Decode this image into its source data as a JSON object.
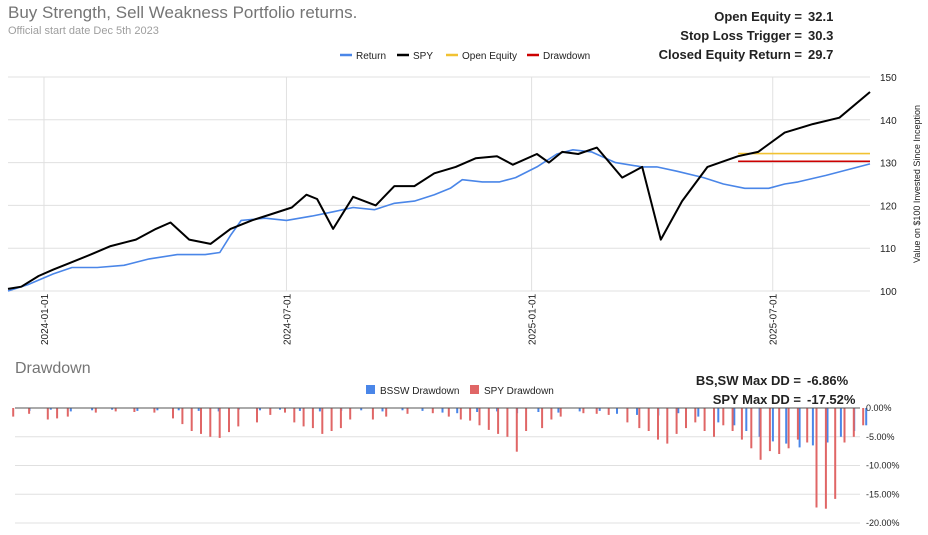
{
  "header": {
    "title": "Buy Strength, Sell Weakness Portfolio returns.",
    "subtitle": "Official start date Dec 5th 2023"
  },
  "stats": [
    {
      "label": "Open Equity =",
      "value": "32.1"
    },
    {
      "label": "Stop Loss Trigger =",
      "value": "30.3"
    },
    {
      "label": "Closed Equity Return =",
      "value": "29.7"
    }
  ],
  "drawdown_panel": {
    "title": "Drawdown",
    "stats": [
      {
        "label": "BS,SW Max DD =",
        "value": "-6.86%"
      },
      {
        "label": "SPY Max DD =",
        "value": "-17.52%"
      }
    ]
  },
  "colors": {
    "return": "#4a86e8",
    "spy": "#000000",
    "open_equity": "#f1c232",
    "drawdown_line": "#cc0000",
    "bssw_dd": "#4a86e8",
    "spy_dd": "#e06666",
    "grid": "#e0e0e0"
  },
  "chart_data": [
    {
      "type": "line",
      "title": "Buy Strength, Sell Weakness Portfolio returns.",
      "ylabel": "Value on $100 Invested Since Inception",
      "ylim": [
        100,
        150
      ],
      "yticks": [
        "100",
        "110",
        "120",
        "130",
        "140",
        "150"
      ],
      "xticks": [
        {
          "label": "2024-01-01",
          "date": "2024-01-01"
        },
        {
          "label": "2024-07-01",
          "date": "2024-07-01"
        },
        {
          "label": "2025-01-01",
          "date": "2025-01-01"
        },
        {
          "label": "2025-07-01",
          "date": "2025-07-01"
        }
      ],
      "x_range": [
        "2023-12-05",
        "2025-09-12"
      ],
      "grid": true,
      "legend": "top",
      "series": [
        {
          "name": "Return",
          "color_key": "return",
          "points": [
            [
              "2023-12-05",
              100.0
            ],
            [
              "2023-12-20",
              101.5
            ],
            [
              "2024-01-08",
              104.0
            ],
            [
              "2024-01-22",
              105.5
            ],
            [
              "2024-02-10",
              105.5
            ],
            [
              "2024-03-01",
              106.0
            ],
            [
              "2024-03-20",
              107.5
            ],
            [
              "2024-04-10",
              108.5
            ],
            [
              "2024-05-01",
              108.5
            ],
            [
              "2024-05-12",
              109.0
            ],
            [
              "2024-05-20",
              113.0
            ],
            [
              "2024-05-28",
              116.5
            ],
            [
              "2024-06-15",
              117.0
            ],
            [
              "2024-07-01",
              116.5
            ],
            [
              "2024-07-20",
              117.5
            ],
            [
              "2024-08-05",
              118.5
            ],
            [
              "2024-08-20",
              119.5
            ],
            [
              "2024-09-05",
              119.0
            ],
            [
              "2024-09-20",
              120.5
            ],
            [
              "2024-10-05",
              121.0
            ],
            [
              "2024-10-20",
              122.5
            ],
            [
              "2024-11-01",
              124.0
            ],
            [
              "2024-11-10",
              126.0
            ],
            [
              "2024-11-25",
              125.5
            ],
            [
              "2024-12-08",
              125.5
            ],
            [
              "2024-12-20",
              126.5
            ],
            [
              "2025-01-05",
              129.0
            ],
            [
              "2025-01-20",
              132.0
            ],
            [
              "2025-02-01",
              133.0
            ],
            [
              "2025-02-15",
              132.5
            ],
            [
              "2025-03-05",
              130.0
            ],
            [
              "2025-03-25",
              129.0
            ],
            [
              "2025-04-05",
              129.0
            ],
            [
              "2025-04-20",
              128.0
            ],
            [
              "2025-05-10",
              126.5
            ],
            [
              "2025-05-25",
              125.0
            ],
            [
              "2025-06-10",
              124.0
            ],
            [
              "2025-06-28",
              124.0
            ],
            [
              "2025-07-10",
              125.0
            ],
            [
              "2025-07-20",
              125.5
            ],
            [
              "2025-08-10",
              127.0
            ],
            [
              "2025-09-12",
              129.7
            ]
          ]
        },
        {
          "name": "SPY",
          "color_key": "spy",
          "points": [
            [
              "2023-12-05",
              100.5
            ],
            [
              "2023-12-15",
              101.0
            ],
            [
              "2023-12-28",
              103.5
            ],
            [
              "2024-01-08",
              105.0
            ],
            [
              "2024-01-20",
              106.5
            ],
            [
              "2024-02-05",
              108.5
            ],
            [
              "2024-02-20",
              110.5
            ],
            [
              "2024-03-10",
              112.0
            ],
            [
              "2024-03-25",
              114.5
            ],
            [
              "2024-04-05",
              116.0
            ],
            [
              "2024-04-19",
              112.0
            ],
            [
              "2024-05-05",
              111.0
            ],
            [
              "2024-05-20",
              114.5
            ],
            [
              "2024-06-05",
              116.5
            ],
            [
              "2024-06-20",
              118.0
            ],
            [
              "2024-07-05",
              119.5
            ],
            [
              "2024-07-16",
              122.5
            ],
            [
              "2024-07-24",
              121.5
            ],
            [
              "2024-08-05",
              114.5
            ],
            [
              "2024-08-20",
              122.0
            ],
            [
              "2024-09-06",
              120.0
            ],
            [
              "2024-09-20",
              124.5
            ],
            [
              "2024-10-05",
              124.5
            ],
            [
              "2024-10-20",
              127.5
            ],
            [
              "2024-11-05",
              129.0
            ],
            [
              "2024-11-20",
              131.0
            ],
            [
              "2024-12-06",
              131.5
            ],
            [
              "2024-12-18",
              129.5
            ],
            [
              "2025-01-05",
              132.0
            ],
            [
              "2025-01-14",
              130.0
            ],
            [
              "2025-01-24",
              132.5
            ],
            [
              "2025-02-05",
              132.0
            ],
            [
              "2025-02-19",
              133.5
            ],
            [
              "2025-03-10",
              126.5
            ],
            [
              "2025-03-25",
              129.0
            ],
            [
              "2025-04-08",
              112.0
            ],
            [
              "2025-04-24",
              121.0
            ],
            [
              "2025-05-13",
              129.0
            ],
            [
              "2025-06-05",
              131.5
            ],
            [
              "2025-06-20",
              132.5
            ],
            [
              "2025-07-10",
              137.0
            ],
            [
              "2025-07-31",
              139.0
            ],
            [
              "2025-08-20",
              140.5
            ],
            [
              "2025-09-12",
              146.5
            ]
          ]
        },
        {
          "name": "Open Equity",
          "color_key": "open_equity",
          "points": [
            [
              "2025-06-05",
              132.1
            ],
            [
              "2025-09-12",
              132.1
            ]
          ]
        },
        {
          "name": "Drawdown",
          "color_key": "drawdown_line",
          "points": [
            [
              "2025-06-05",
              130.3
            ],
            [
              "2025-09-12",
              130.3
            ]
          ]
        }
      ]
    },
    {
      "type": "bar",
      "title": "Drawdown",
      "ylim": [
        -20,
        0
      ],
      "yticks": [
        "0.00%",
        "-5.00%",
        "-10.00%",
        "-15.00%",
        "-20.00%"
      ],
      "legend": "top",
      "series": [
        {
          "name": "BSSW Drawdown",
          "color_key": "bssw_dd",
          "points": [
            [
              "2023-12-20",
              -0.5
            ],
            [
              "2024-01-05",
              -0.3
            ],
            [
              "2024-01-20",
              -0.6
            ],
            [
              "2024-02-05",
              -0.4
            ],
            [
              "2024-02-20",
              -0.3
            ],
            [
              "2024-03-10",
              -0.5
            ],
            [
              "2024-03-25",
              -0.4
            ],
            [
              "2024-04-10",
              -0.4
            ],
            [
              "2024-04-25",
              -0.5
            ],
            [
              "2024-05-10",
              -0.6
            ],
            [
              "2024-05-25",
              -0.3
            ],
            [
              "2024-06-10",
              -0.4
            ],
            [
              "2024-06-25",
              -0.3
            ],
            [
              "2024-07-10",
              -0.5
            ],
            [
              "2024-07-25",
              -0.6
            ],
            [
              "2024-08-10",
              -0.5
            ],
            [
              "2024-08-25",
              -0.4
            ],
            [
              "2024-09-10",
              -0.6
            ],
            [
              "2024-09-25",
              -0.4
            ],
            [
              "2024-10-10",
              -0.5
            ],
            [
              "2024-10-25",
              -0.8
            ],
            [
              "2024-11-05",
              -0.9
            ],
            [
              "2024-11-20",
              -0.7
            ],
            [
              "2024-12-05",
              -0.6
            ],
            [
              "2024-12-20",
              -0.9
            ],
            [
              "2025-01-05",
              -0.7
            ],
            [
              "2025-01-20",
              -0.8
            ],
            [
              "2025-02-05",
              -0.6
            ],
            [
              "2025-02-20",
              -0.5
            ],
            [
              "2025-03-05",
              -1.0
            ],
            [
              "2025-03-20",
              -1.2
            ],
            [
              "2025-04-05",
              -1.3
            ],
            [
              "2025-04-20",
              -0.9
            ],
            [
              "2025-05-05",
              -1.5
            ],
            [
              "2025-05-20",
              -2.5
            ],
            [
              "2025-06-01",
              -3.0
            ],
            [
              "2025-06-10",
              -4.0
            ],
            [
              "2025-06-20",
              -5.0
            ],
            [
              "2025-06-30",
              -5.8
            ],
            [
              "2025-07-10",
              -6.2
            ],
            [
              "2025-07-20",
              -6.86
            ],
            [
              "2025-07-30",
              -6.5
            ],
            [
              "2025-08-10",
              -6.0
            ],
            [
              "2025-08-20",
              -5.0
            ],
            [
              "2025-08-30",
              -4.0
            ],
            [
              "2025-09-08",
              -3.0
            ]
          ]
        },
        {
          "name": "SPY Drawdown",
          "color_key": "spy_dd",
          "points": [
            [
              "2023-12-10",
              -1.5
            ],
            [
              "2023-12-22",
              -1.0
            ],
            [
              "2024-01-05",
              -2.0
            ],
            [
              "2024-01-12",
              -1.8
            ],
            [
              "2024-01-20",
              -1.5
            ],
            [
              "2024-02-10",
              -0.8
            ],
            [
              "2024-02-25",
              -0.6
            ],
            [
              "2024-03-10",
              -0.7
            ],
            [
              "2024-03-25",
              -0.8
            ],
            [
              "2024-04-08",
              -1.8
            ],
            [
              "2024-04-15",
              -2.8
            ],
            [
              "2024-04-22",
              -4.0
            ],
            [
              "2024-04-29",
              -4.5
            ],
            [
              "2024-05-06",
              -5.0
            ],
            [
              "2024-05-13",
              -5.2
            ],
            [
              "2024-05-20",
              -4.2
            ],
            [
              "2024-05-27",
              -3.2
            ],
            [
              "2024-06-10",
              -2.5
            ],
            [
              "2024-06-20",
              -1.2
            ],
            [
              "2024-07-01",
              -0.8
            ],
            [
              "2024-07-08",
              -2.5
            ],
            [
              "2024-07-15",
              -3.2
            ],
            [
              "2024-07-22",
              -3.5
            ],
            [
              "2024-07-29",
              -4.5
            ],
            [
              "2024-08-05",
              -4.0
            ],
            [
              "2024-08-12",
              -3.5
            ],
            [
              "2024-08-19",
              -2.0
            ],
            [
              "2024-09-05",
              -2.0
            ],
            [
              "2024-09-15",
              -1.5
            ],
            [
              "2024-10-01",
              -1.0
            ],
            [
              "2024-10-20",
              -0.9
            ],
            [
              "2024-11-01",
              -1.5
            ],
            [
              "2024-11-10",
              -2.0
            ],
            [
              "2024-11-17",
              -2.2
            ],
            [
              "2024-11-24",
              -3.0
            ],
            [
              "2024-12-01",
              -3.8
            ],
            [
              "2024-12-08",
              -4.5
            ],
            [
              "2024-12-15",
              -5.0
            ],
            [
              "2024-12-22",
              -7.6
            ],
            [
              "2024-12-29",
              -4.0
            ],
            [
              "2025-01-10",
              -3.5
            ],
            [
              "2025-01-17",
              -2.0
            ],
            [
              "2025-01-24",
              -1.5
            ],
            [
              "2025-02-10",
              -0.9
            ],
            [
              "2025-02-20",
              -1.0
            ],
            [
              "2025-03-01",
              -1.2
            ],
            [
              "2025-03-15",
              -2.5
            ],
            [
              "2025-03-24",
              -3.5
            ],
            [
              "2025-03-31",
              -4.0
            ],
            [
              "2025-04-07",
              -5.5
            ],
            [
              "2025-04-14",
              -6.2
            ],
            [
              "2025-04-21",
              -4.5
            ],
            [
              "2025-04-28",
              -3.5
            ],
            [
              "2025-05-05",
              -2.5
            ],
            [
              "2025-05-12",
              -4.0
            ],
            [
              "2025-05-19",
              -5.0
            ],
            [
              "2025-05-26",
              -3.0
            ],
            [
              "2025-06-02",
              -4.0
            ],
            [
              "2025-06-09",
              -5.5
            ],
            [
              "2025-06-16",
              -7.0
            ],
            [
              "2025-06-23",
              -9.0
            ],
            [
              "2025-06-30",
              -7.5
            ],
            [
              "2025-07-07",
              -8.0
            ],
            [
              "2025-07-14",
              -7.0
            ],
            [
              "2025-07-21",
              -5.5
            ],
            [
              "2025-07-28",
              -6.0
            ],
            [
              "2025-08-04",
              -17.3
            ],
            [
              "2025-08-11",
              -17.52
            ],
            [
              "2025-08-18",
              -15.8
            ],
            [
              "2025-08-25",
              -6.0
            ],
            [
              "2025-09-01",
              -5.0
            ],
            [
              "2025-09-08",
              -3.0
            ]
          ]
        }
      ]
    }
  ]
}
